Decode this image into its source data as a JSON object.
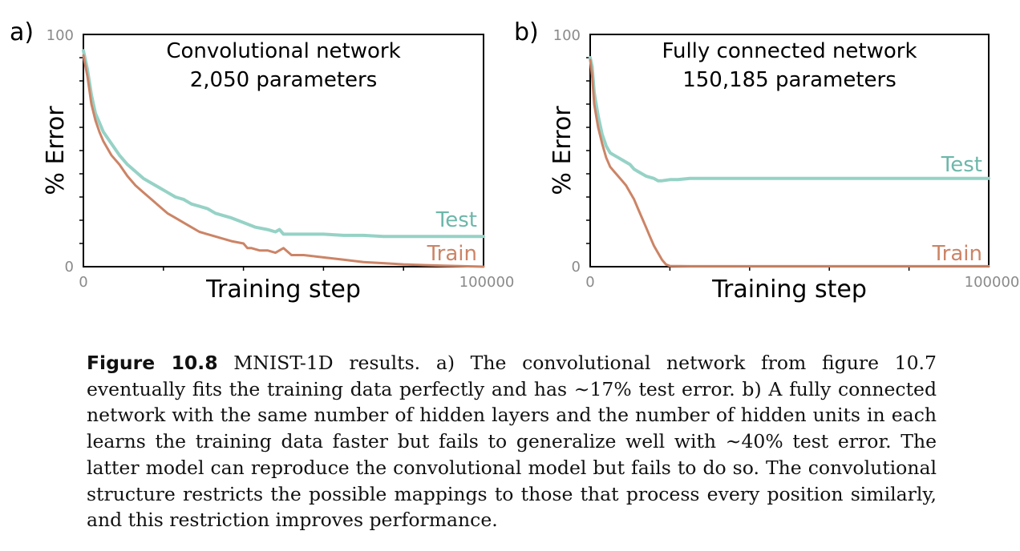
{
  "colors": {
    "train": "#cc8466",
    "test": "#96d2c6",
    "test_label": "#6db7aa",
    "axis": "#000000",
    "tick_text": "#8a8a8a"
  },
  "chart_data": [
    {
      "panel": "a)",
      "type": "line",
      "title": [
        "Convolutional network",
        "2,050 parameters"
      ],
      "xlabel": "Training step",
      "ylabel": "% Error",
      "xlim": [
        0,
        100000
      ],
      "ylim": [
        0,
        100
      ],
      "x_tick_labels": [
        "0",
        "100000"
      ],
      "y_tick_labels": [
        "0",
        "100"
      ],
      "x_minor_ticks": [
        20000,
        40000,
        60000,
        80000
      ],
      "y_minor_ticks": [
        10,
        20,
        30,
        40,
        50,
        60,
        70,
        80,
        90
      ],
      "grid": false,
      "series": [
        {
          "name": "Test",
          "x": [
            0,
            1000,
            2000,
            3000,
            4000,
            5000,
            7000,
            9000,
            11000,
            13000,
            15000,
            17000,
            19000,
            21000,
            23000,
            25000,
            27000,
            29000,
            31000,
            33000,
            35000,
            37000,
            40000,
            43000,
            46000,
            48000,
            49000,
            50000,
            52000,
            55000,
            60000,
            65000,
            70000,
            75000,
            80000,
            85000,
            90000,
            95000,
            100000
          ],
          "y": [
            93,
            85,
            74,
            66,
            62,
            58,
            53,
            48,
            44,
            41,
            38,
            36,
            34,
            32,
            30,
            29,
            27,
            26,
            25,
            23,
            22,
            21,
            19,
            17,
            16,
            15,
            16,
            14,
            14,
            14,
            14,
            13.5,
            13.5,
            13,
            13,
            13,
            13,
            13,
            13
          ]
        },
        {
          "name": "Train",
          "x": [
            0,
            1000,
            2000,
            3000,
            4000,
            5000,
            7000,
            9000,
            11000,
            13000,
            15000,
            17000,
            19000,
            21000,
            23000,
            25000,
            27000,
            29000,
            31000,
            33000,
            35000,
            37000,
            40000,
            41000,
            42000,
            44000,
            46000,
            48000,
            50000,
            52000,
            55000,
            60000,
            65000,
            70000,
            75000,
            80000,
            85000,
            90000,
            95000,
            100000
          ],
          "y": [
            91,
            82,
            70,
            63,
            58,
            54,
            48,
            44,
            39,
            35,
            32,
            29,
            26,
            23,
            21,
            19,
            17,
            15,
            14,
            13,
            12,
            11,
            10,
            8,
            8,
            7,
            7,
            6,
            8,
            5,
            5,
            4,
            3,
            2,
            1.5,
            1,
            0.7,
            0.4,
            0.2,
            0
          ]
        }
      ],
      "series_label_text": [
        "Test",
        "Train"
      ]
    },
    {
      "panel": "b)",
      "type": "line",
      "title": [
        "Fully connected network",
        "150,185 parameters"
      ],
      "xlabel": "Training step",
      "ylabel": "% Error",
      "xlim": [
        0,
        100000
      ],
      "ylim": [
        0,
        100
      ],
      "x_tick_labels": [
        "0",
        "100000"
      ],
      "y_tick_labels": [
        "0",
        "100"
      ],
      "x_minor_ticks": [
        20000,
        40000,
        60000,
        80000
      ],
      "y_minor_ticks": [
        10,
        20,
        30,
        40,
        50,
        60,
        70,
        80,
        90
      ],
      "grid": false,
      "series": [
        {
          "name": "Test",
          "x": [
            0,
            500,
            1000,
            2000,
            3000,
            4000,
            5000,
            6000,
            7000,
            8000,
            9000,
            10000,
            11000,
            12000,
            14000,
            16000,
            17000,
            18000,
            20000,
            22000,
            25000,
            30000,
            40000,
            50000,
            60000,
            70000,
            80000,
            90000,
            100000
          ],
          "y": [
            90,
            86,
            75,
            65,
            57,
            52,
            49,
            48,
            47,
            46,
            45,
            44,
            42,
            41,
            39,
            38,
            37,
            37,
            37.5,
            37.5,
            38,
            38,
            38,
            38,
            38,
            38,
            38,
            38,
            38
          ]
        },
        {
          "name": "Train",
          "x": [
            0,
            500,
            1000,
            2000,
            3000,
            4000,
            5000,
            6000,
            7000,
            8000,
            9000,
            10000,
            11000,
            12000,
            13000,
            14000,
            15000,
            16000,
            17000,
            18000,
            19000,
            20000,
            25000,
            30000,
            40000,
            50000,
            60000,
            70000,
            80000,
            90000,
            100000
          ],
          "y": [
            89,
            82,
            70,
            60,
            53,
            47,
            43,
            41,
            39,
            37,
            35,
            32,
            29,
            25,
            21,
            17,
            13,
            9,
            6,
            3,
            1,
            0.3,
            0.2,
            0.2,
            0.2,
            0.2,
            0.2,
            0.2,
            0.2,
            0.2,
            0.2
          ]
        }
      ],
      "series_label_text": [
        "Test",
        "Train"
      ]
    }
  ],
  "caption": {
    "label": "Figure 10.8",
    "text": "MNIST-1D results. a) The convolutional network from figure 10.7 eventually fits the training data perfectly and has ∼17% test error. b) A fully connected network with the same number of hidden layers and the number of hidden units in each learns the training data faster but fails to generalize well with ∼40% test error. The latter model can reproduce the convolutional model but fails to do so. The convolutional structure restricts the possible mappings to those that process every position similarly, and this restriction improves performance."
  }
}
